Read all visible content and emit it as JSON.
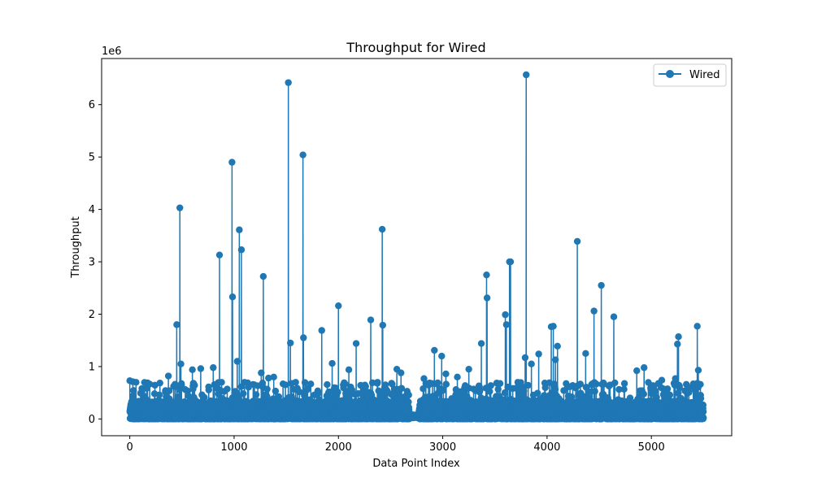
{
  "chart_data": {
    "type": "line",
    "title": "Throughput for Wired",
    "xlabel": "Data Point Index",
    "ylabel": "Throughput",
    "y_offset_label": "1e6",
    "xlim": [
      -270,
      5770
    ],
    "ylim": [
      -320000,
      6880000
    ],
    "x_ticks": [
      0,
      1000,
      2000,
      3000,
      4000,
      5000
    ],
    "x_tick_labels": [
      "0",
      "1000",
      "2000",
      "3000",
      "4000",
      "5000"
    ],
    "y_ticks": [
      0,
      1000000,
      2000000,
      3000000,
      4000000,
      5000000,
      6000000
    ],
    "y_tick_labels": [
      "0",
      "1",
      "2",
      "3",
      "4",
      "5",
      "6"
    ],
    "grid": false,
    "legend_position": "top-right",
    "series": [
      {
        "name": "Wired",
        "color": "#1f77b4",
        "marker": "circle",
        "n_points": 5500,
        "baseline_max": 350000,
        "gap": [
          2680,
          2770
        ],
        "peaks": [
          [
            0,
            730000
          ],
          [
            30,
            710000
          ],
          [
            60,
            700000
          ],
          [
            170,
            690000
          ],
          [
            370,
            820000
          ],
          [
            450,
            1800000
          ],
          [
            480,
            4030000
          ],
          [
            490,
            1050000
          ],
          [
            600,
            940000
          ],
          [
            680,
            960000
          ],
          [
            800,
            980000
          ],
          [
            860,
            3130000
          ],
          [
            880,
            700000
          ],
          [
            980,
            4900000
          ],
          [
            985,
            2330000
          ],
          [
            1030,
            1100000
          ],
          [
            1050,
            3610000
          ],
          [
            1070,
            3230000
          ],
          [
            1100,
            700000
          ],
          [
            1130,
            690000
          ],
          [
            1260,
            880000
          ],
          [
            1280,
            2720000
          ],
          [
            1330,
            780000
          ],
          [
            1380,
            800000
          ],
          [
            1520,
            6420000
          ],
          [
            1540,
            1450000
          ],
          [
            1590,
            700000
          ],
          [
            1660,
            5040000
          ],
          [
            1665,
            1550000
          ],
          [
            1840,
            1690000
          ],
          [
            1940,
            1060000
          ],
          [
            2000,
            2160000
          ],
          [
            2100,
            940000
          ],
          [
            2170,
            1440000
          ],
          [
            2310,
            1890000
          ],
          [
            2420,
            3620000
          ],
          [
            2425,
            1790000
          ],
          [
            2560,
            950000
          ],
          [
            2600,
            880000
          ],
          [
            2820,
            770000
          ],
          [
            2920,
            1310000
          ],
          [
            2990,
            1200000
          ],
          [
            3030,
            860000
          ],
          [
            3140,
            800000
          ],
          [
            3250,
            950000
          ],
          [
            3370,
            1440000
          ],
          [
            3420,
            2750000
          ],
          [
            3425,
            2310000
          ],
          [
            3600,
            1990000
          ],
          [
            3610,
            1800000
          ],
          [
            3640,
            3000000
          ],
          [
            3650,
            3000000
          ],
          [
            3790,
            1170000
          ],
          [
            3800,
            6570000
          ],
          [
            3850,
            1050000
          ],
          [
            3920,
            1240000
          ],
          [
            4040,
            1760000
          ],
          [
            4060,
            1770000
          ],
          [
            4080,
            1130000
          ],
          [
            4100,
            1390000
          ],
          [
            4290,
            3390000
          ],
          [
            4370,
            1250000
          ],
          [
            4450,
            2060000
          ],
          [
            4520,
            2550000
          ],
          [
            4640,
            1950000
          ],
          [
            4650,
            690000
          ],
          [
            4860,
            920000
          ],
          [
            4930,
            980000
          ],
          [
            5100,
            740000
          ],
          [
            5230,
            770000
          ],
          [
            5260,
            1570000
          ],
          [
            5250,
            1430000
          ],
          [
            5440,
            1770000
          ],
          [
            5450,
            930000
          ],
          [
            5470,
            660000
          ]
        ]
      }
    ]
  }
}
